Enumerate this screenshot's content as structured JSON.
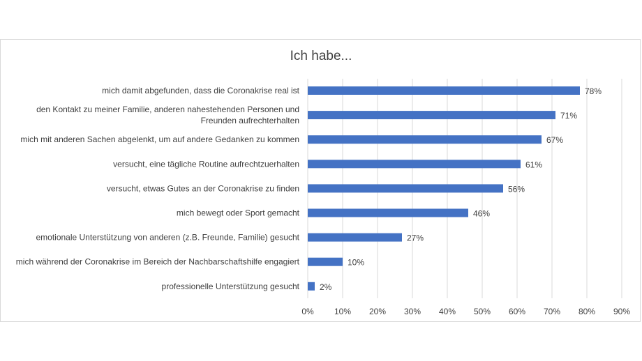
{
  "chart_data": {
    "type": "bar",
    "orientation": "horizontal",
    "title": "Ich habe...",
    "categories": [
      [
        "mich damit abgefunden, dass die Coronakrise real ist"
      ],
      [
        "den Kontakt zu meiner Familie, anderen nahestehenden Personen und",
        "Freunden aufrechterhalten"
      ],
      [
        "mich mit anderen Sachen abgelenkt, um auf andere Gedanken zu kommen"
      ],
      [
        "versucht, eine tägliche Routine aufrechtzuerhalten"
      ],
      [
        "versucht, etwas Gutes an der Coronakrise zu finden"
      ],
      [
        "mich bewegt oder Sport gemacht"
      ],
      [
        "emotionale Unterstützung von anderen (z.B. Freunde, Familie) gesucht"
      ],
      [
        "mich während der Coronakrise im Bereich der Nachbarschaftshilfe engagiert"
      ],
      [
        "professionelle Unterstützung gesucht"
      ]
    ],
    "values": [
      78,
      71,
      67,
      61,
      56,
      46,
      27,
      10,
      2
    ],
    "data_labels": [
      "78%",
      "71%",
      "67%",
      "61%",
      "56%",
      "46%",
      "27%",
      "10%",
      "2%"
    ],
    "x_ticks": [
      "0%",
      "10%",
      "20%",
      "30%",
      "40%",
      "50%",
      "60%",
      "70%",
      "80%",
      "90%"
    ],
    "xlim": [
      0,
      90
    ],
    "grid": true,
    "bar_color": "#4472c4",
    "grid_color": "#d9d9d9"
  }
}
